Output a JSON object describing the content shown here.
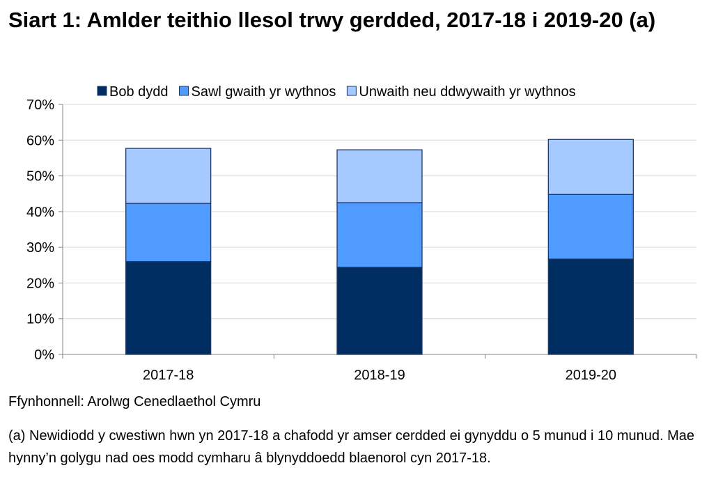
{
  "chart_data": {
    "type": "bar",
    "stacked": true,
    "title": "Siart 1: Amlder teithio llesol trwy gerdded, 2017-18 i 2019-20 (a)",
    "categories": [
      "2017-18",
      "2018-19",
      "2019-20"
    ],
    "series": [
      {
        "name": "Bob dydd",
        "values": [
          26.0,
          24.4,
          26.7
        ],
        "color": "#002D62"
      },
      {
        "name": "Sawl gwaith yr wythnos",
        "values": [
          16.3,
          18.1,
          18.1
        ],
        "color": "#509BFF"
      },
      {
        "name": "Unwaith neu ddwywaith yr wythnos",
        "values": [
          15.4,
          14.8,
          15.4
        ],
        "color": "#A6CAFF"
      }
    ],
    "ylim": [
      0,
      70
    ],
    "yticks": [
      "0%",
      "10%",
      "20%",
      "30%",
      "40%",
      "50%",
      "60%",
      "70%"
    ],
    "grid": true,
    "legend": "top",
    "xlabel": "",
    "ylabel": ""
  },
  "source": "Ffynhonnell: Arolwg Cenedlaethol Cymru",
  "note": "(a) Newidiodd y cwestiwn hwn yn 2017-18 a chafodd yr amser cerdded ei gynyddu o 5 munud i 10 munud. Mae hynny’n golygu nad oes modd cymharu â blynyddoedd blaenorol cyn 2017-18."
}
